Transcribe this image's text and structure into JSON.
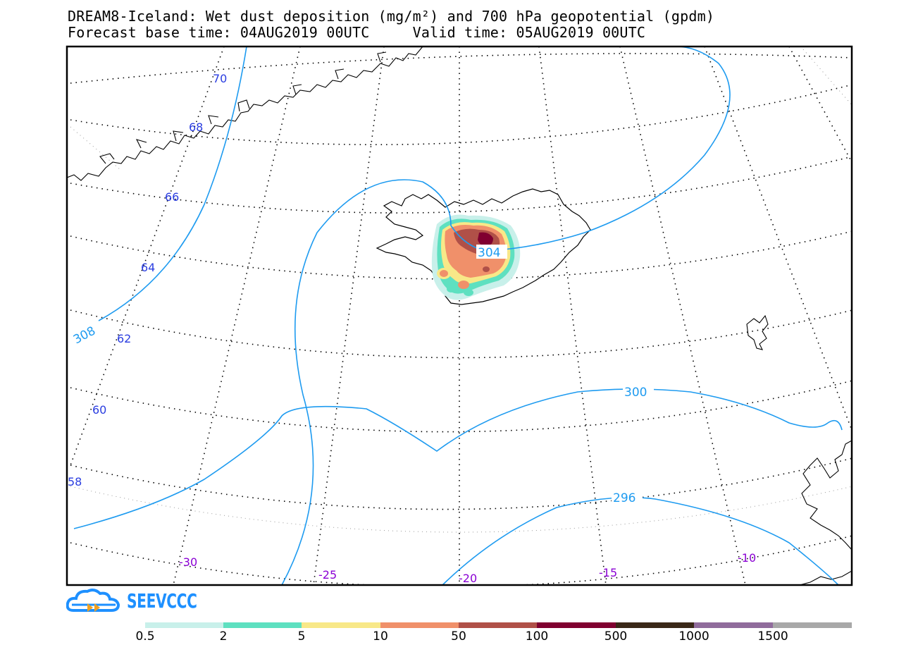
{
  "title": {
    "line1": "DREAM8-Iceland: Wet dust deposition (mg/m²) and 700 hPa geopotential (gpdm)",
    "line2": "Forecast base time: 04AUG2019 00UTC     Valid time: 05AUG2019 00UTC"
  },
  "map": {
    "projection": "polar-stereographic",
    "region": "Iceland",
    "latitude_labels": [
      "70",
      "68",
      "66",
      "64",
      "62",
      "60",
      "58"
    ],
    "longitude_labels": [
      "-30",
      "-25",
      "-20",
      "-15",
      "-10"
    ],
    "geopotential_contours_gpdm": [
      "308",
      "304",
      "300",
      "296"
    ],
    "colors": {
      "contour": "#1e9bf0",
      "lat_label": "#2a3de0",
      "lon_label": "#8a00d4",
      "coast": "#000000"
    }
  },
  "logo": {
    "text": "SEEVCCC",
    "color": "#1e90ff"
  },
  "colorbar": {
    "labels": [
      "0.5",
      "2",
      "5",
      "10",
      "50",
      "100",
      "500",
      "1000",
      "1500"
    ],
    "colors": [
      "#c8f0ea",
      "#5ee0c0",
      "#f8e888",
      "#f0906a",
      "#b05048",
      "#800030",
      "#3a2818",
      "#906c9c",
      "#a8a8a8"
    ]
  }
}
